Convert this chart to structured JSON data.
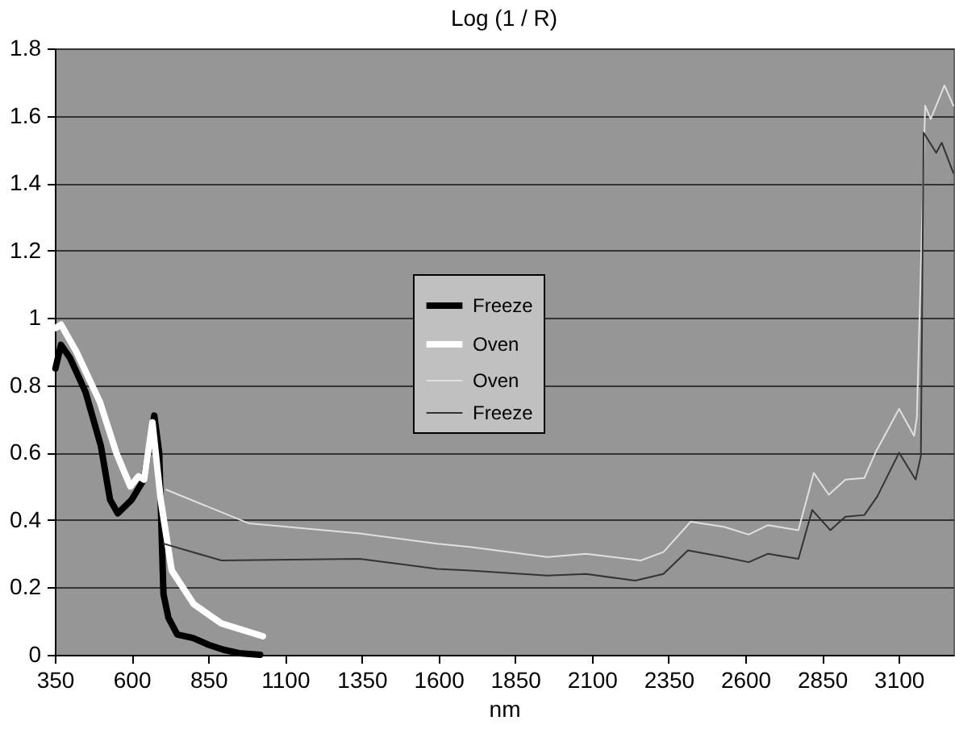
{
  "chart_data": {
    "type": "line",
    "title": "Log (1 / R)",
    "xlabel": "nm",
    "xlim": [
      350,
      3278
    ],
    "xticks": [
      350,
      600,
      850,
      1100,
      1350,
      1600,
      1850,
      2100,
      2350,
      2600,
      2850,
      3100
    ],
    "ylim": [
      0,
      1.8
    ],
    "yticks": [
      0,
      0.2,
      0.4,
      0.6,
      0.8,
      1,
      1.2,
      1.4,
      1.6,
      1.8
    ],
    "grid": "y",
    "legend": "center",
    "line_style": "solid",
    "marker": "none",
    "series": [
      {
        "name": "Freeze",
        "color": "#000000",
        "x": [
          352,
          370,
          400,
          450,
          500,
          530,
          555,
          600,
          640,
          674,
          690,
          704,
          720,
          749,
          800,
          850,
          900,
          950,
          1019
        ],
        "values": [
          0.85,
          0.92,
          0.88,
          0.78,
          0.62,
          0.46,
          0.42,
          0.46,
          0.52,
          0.71,
          0.6,
          0.18,
          0.11,
          0.06,
          0.05,
          0.03,
          0.015,
          0.005,
          0
        ]
      },
      {
        "name": "Oven",
        "color": "#ffffff",
        "x": [
          352,
          370,
          420,
          497,
          550,
          596,
          623,
          641,
          668,
          695,
          731,
          803,
          893,
          1028
        ],
        "values": [
          0.97,
          0.98,
          0.9,
          0.75,
          0.6,
          0.5,
          0.53,
          0.52,
          0.69,
          0.46,
          0.25,
          0.15,
          0.093,
          0.055
        ]
      },
      {
        "name": "Oven",
        "color": "#e0e0e0",
        "x": [
          713,
          983,
          1343,
          1596,
          1703,
          1955,
          2081,
          2259,
          2333,
          2422,
          2530,
          2611,
          2674,
          2773,
          2823,
          2872,
          2926,
          2988,
          3024,
          3101,
          3150,
          3159,
          3186,
          3204,
          3249,
          3278
        ],
        "values": [
          0.49,
          0.39,
          0.36,
          0.33,
          0.32,
          0.29,
          0.3,
          0.28,
          0.305,
          0.395,
          0.38,
          0.357,
          0.385,
          0.37,
          0.54,
          0.475,
          0.52,
          0.525,
          0.6,
          0.73,
          0.65,
          0.705,
          1.63,
          1.59,
          1.69,
          1.63
        ]
      },
      {
        "name": "Freeze",
        "color": "#333333",
        "x": [
          704,
          893,
          1343,
          1596,
          1703,
          1955,
          2081,
          2241,
          2333,
          2413,
          2530,
          2611,
          2674,
          2773,
          2818,
          2877,
          2926,
          2988,
          3030,
          3101,
          3155,
          3172,
          3181,
          3222,
          3240,
          3278
        ],
        "values": [
          0.33,
          0.28,
          0.285,
          0.255,
          0.25,
          0.235,
          0.24,
          0.22,
          0.24,
          0.31,
          0.29,
          0.275,
          0.3,
          0.285,
          0.43,
          0.37,
          0.41,
          0.415,
          0.47,
          0.6,
          0.52,
          0.59,
          1.55,
          1.49,
          1.52,
          1.43
        ]
      }
    ]
  }
}
